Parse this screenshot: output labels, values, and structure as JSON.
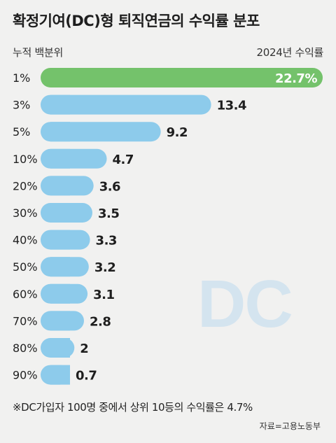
{
  "title": "확정기여(DC)형 퇴직연금의 수익률 분포",
  "column_left_header": "누적 백분위",
  "column_right_header": "2024년 수익률",
  "watermark": "DC",
  "footnote": "※DC가입자 100명 중에서 상위 10등의 수익률은 4.7%",
  "source": "자료=고용노동부",
  "colors": {
    "highlight_bar": "#74c26b",
    "bar": "#8dcbeb",
    "background": "#f1f1f0",
    "highlight_label": "#ffffff",
    "label": "#1e1e1e"
  },
  "chart_data": {
    "type": "bar",
    "orientation": "horizontal",
    "categories": [
      "1%",
      "3%",
      "5%",
      "10%",
      "20%",
      "30%",
      "40%",
      "50%",
      "60%",
      "70%",
      "80%",
      "90%"
    ],
    "values": [
      22.7,
      13.4,
      9.2,
      4.7,
      3.6,
      3.5,
      3.3,
      3.2,
      3.1,
      2.8,
      2,
      0.7
    ],
    "value_labels": [
      "22.7%",
      "13.4",
      "9.2",
      "4.7",
      "3.6",
      "3.5",
      "3.3",
      "3.2",
      "3.1",
      "2.8",
      "2",
      "0.7"
    ],
    "highlight_index": 0,
    "title": "확정기여(DC)형 퇴직연금의 수익률 분포",
    "xlabel": "2024년 수익률",
    "ylabel": "누적 백분위",
    "grid": false,
    "legend": "none"
  }
}
